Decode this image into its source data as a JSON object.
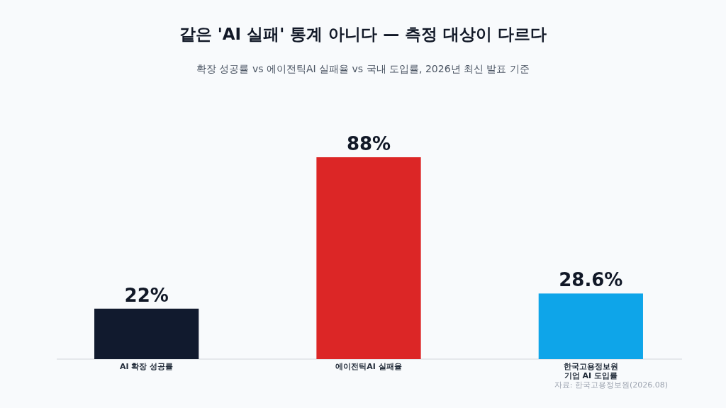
{
  "chart_data": {
    "type": "bar",
    "title": "같은 'AI 실패' 통계 아니다 — 측정 대상이 다르다",
    "subtitle": "확장 성공률 vs 에이전틱AI 실패율 vs 국내 도입률, 2026년 최신 발표 기준",
    "categories": [
      "AI 확장 성공률",
      "에이전틱AI 실패율",
      "한국고용정보원\n기업 AI 도입률"
    ],
    "values": [
      22,
      88,
      28.6
    ],
    "value_labels": [
      "22%",
      "88%",
      "28.6%"
    ],
    "colors": [
      "#111a2e",
      "#dc2626",
      "#0ea5e9"
    ],
    "annotations": [
      "자료: 한국고용정보원(2026.08)"
    ]
  }
}
